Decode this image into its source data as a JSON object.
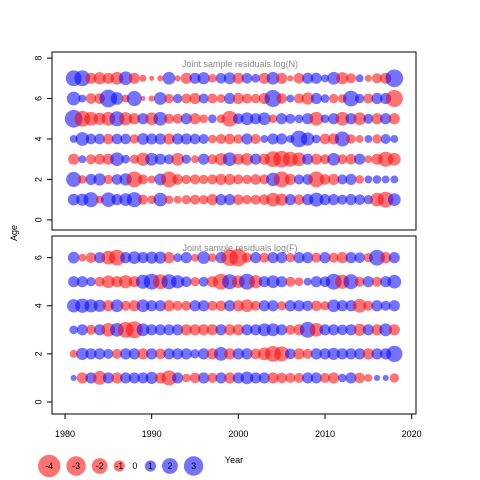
{
  "chart_data": [
    {
      "type": "scatter",
      "title": "Joint sample residuals log(N)",
      "xlabel": "",
      "ylabel": "Age",
      "xlim": [
        1978.5,
        2020.5
      ],
      "ylim": [
        -0.5,
        8.3
      ],
      "yticks": [
        0,
        2,
        4,
        6,
        8
      ],
      "ages": [
        1,
        2,
        3,
        4,
        5,
        6,
        7
      ],
      "years": [
        1981,
        2018
      ],
      "grid": false,
      "series": [
        {
          "age": 7,
          "residuals": [
            2.0,
            2.0,
            -1.0,
            -1.2,
            -1.0,
            -1.3,
            1.5,
            -1.0,
            -0.4,
            -0.2,
            -0.3,
            1.3,
            -0.3,
            -1.0,
            1.0,
            1.2,
            -0.6,
            0.9,
            1.1,
            -1.0,
            0.9,
            0.6,
            -1.0,
            1.3,
            -1.0,
            -0.3,
            -0.9,
            1.0,
            1.0,
            0.5,
            1.3,
            -1.2,
            -0.8,
            0.5,
            -0.4,
            -0.8,
            -1.0,
            2.5
          ]
        },
        {
          "age": 6,
          "residuals": [
            1.5,
            0.5,
            -0.9,
            -0.9,
            2.5,
            1.3,
            -0.5,
            1.8,
            -0.2,
            -0.3,
            1.3,
            -0.7,
            0.7,
            -0.8,
            -1.0,
            0.8,
            -0.8,
            -0.6,
            1.0,
            -1.0,
            -0.8,
            -0.7,
            -1.0,
            2.3,
            -0.9,
            0.5,
            -0.8,
            -1.2,
            1.0,
            0.6,
            -0.7,
            -0.6,
            2.0,
            0.7,
            -0.8,
            1.0,
            1.0,
            -2.3
          ]
        },
        {
          "age": 5,
          "residuals": [
            2.5,
            -2.0,
            -1.5,
            -1.2,
            -1.5,
            1.8,
            -1.4,
            -1.0,
            1.0,
            -1.3,
            1.5,
            -0.8,
            -0.8,
            1.0,
            -1.0,
            -0.6,
            0.6,
            -0.6,
            -2.0,
            0.9,
            1.3,
            1.0,
            1.3,
            -0.6,
            1.0,
            0.8,
            0.6,
            1.0,
            -1.5,
            0.6,
            1.0,
            -1.5,
            1.0,
            -1.3,
            0.8,
            -1.0,
            1.0,
            -1.0
          ]
        },
        {
          "age": 4,
          "residuals": [
            0.5,
            1.5,
            0.9,
            0.9,
            -0.9,
            0.9,
            0.9,
            -0.7,
            1.1,
            1.0,
            1.0,
            -1.0,
            1.0,
            1.0,
            0.9,
            0.8,
            -0.6,
            -0.8,
            -0.9,
            -0.7,
            1.0,
            -0.8,
            0.5,
            1.0,
            1.0,
            0.5,
            2.2,
            1.4,
            0.6,
            -0.9,
            -1.0,
            1.8,
            -0.7,
            -0.5,
            0.5,
            -0.7,
            0.8,
            0.5
          ]
        },
        {
          "age": 3,
          "residuals": [
            -1.0,
            0.5,
            -0.8,
            -0.9,
            -1.0,
            1.5,
            0.6,
            -0.7,
            -1.4,
            1.3,
            1.0,
            0.8,
            -1.3,
            0.7,
            -0.5,
            1.0,
            -0.8,
            -1.2,
            1.5,
            -1.0,
            -1.2,
            1.0,
            -1.0,
            -2.0,
            -2.2,
            -1.8,
            -1.5,
            1.0,
            -1.0,
            -0.8,
            1.3,
            -0.8,
            -0.9,
            1.0,
            -0.5,
            -1.0,
            -1.8,
            -1.3
          ]
        },
        {
          "age": 2,
          "residuals": [
            1.8,
            -0.6,
            1.0,
            1.2,
            -0.7,
            0.9,
            1.2,
            -2.0,
            -0.8,
            -0.5,
            1.1,
            -2.0,
            -0.9,
            -0.7,
            -0.8,
            -0.7,
            -0.8,
            -1.0,
            -1.0,
            -0.8,
            -0.7,
            -0.9,
            -0.8,
            1.5,
            -2.0,
            -1.0,
            0.8,
            0.9,
            -2.0,
            -0.9,
            -1.0,
            0.8,
            1.0,
            -0.6,
            0.5,
            0.6,
            0.5,
            0.5
          ]
        },
        {
          "age": 1,
          "residuals": [
            1.1,
            1.2,
            1.8,
            -0.5,
            1.7,
            1.0,
            1.3,
            1.8,
            -0.8,
            -0.6,
            1.5,
            -0.6,
            -0.5,
            -0.7,
            -0.8,
            -0.7,
            -1.0,
            1.0,
            1.0,
            -0.9,
            -0.7,
            -0.8,
            -0.9,
            -1.5,
            -1.2,
            1.0,
            -0.9,
            1.0,
            1.6,
            1.0,
            1.0,
            0.8,
            1.0,
            0.9,
            0.7,
            -1.5,
            -2.0,
            1.3
          ]
        }
      ]
    },
    {
      "type": "scatter",
      "title": "Joint sample residuals log(F)",
      "xlabel": "Year",
      "ylabel": "Age",
      "xlim": [
        1978.5,
        2020.5
      ],
      "ylim": [
        -0.5,
        6.9
      ],
      "xticks": [
        1980,
        1990,
        2000,
        2010,
        2020
      ],
      "yticks": [
        0,
        2,
        4,
        6
      ],
      "ages": [
        1,
        2,
        3,
        4,
        5,
        6
      ],
      "years": [
        1981,
        2018
      ],
      "grid": false,
      "series": [
        {
          "age": 6,
          "residuals": [
            1.1,
            -0.5,
            -0.9,
            1.0,
            -1.5,
            -2.0,
            1.0,
            1.3,
            1.0,
            1.2,
            1.2,
            -1.0,
            0.6,
            1.0,
            -0.5,
            1.3,
            -0.6,
            1.0,
            -2.2,
            -2.5,
            -0.8,
            1.0,
            -0.8,
            1.0,
            1.0,
            -0.7,
            1.0,
            1.0,
            -0.8,
            1.0,
            -0.8,
            -1.0,
            1.0,
            0.9,
            -0.7,
            2.0,
            -1.0,
            1.0
          ]
        },
        {
          "age": 5,
          "residuals": [
            1.0,
            1.0,
            0.7,
            -0.8,
            -1.3,
            -1.0,
            -1.4,
            -1.0,
            1.6,
            2.0,
            -1.8,
            1.8,
            1.4,
            0.9,
            -0.7,
            0.8,
            -1.0,
            -2.0,
            1.8,
            -1.3,
            2.0,
            -1.4,
            1.0,
            1.3,
            1.0,
            -0.8,
            -0.6,
            0.5,
            1.0,
            0.9,
            2.0,
            -1.6,
            1.8,
            -0.8,
            1.0,
            -0.8,
            1.0,
            1.5
          ]
        },
        {
          "age": 4,
          "residuals": [
            1.4,
            1.6,
            1.4,
            1.2,
            -1.0,
            1.3,
            -0.8,
            -1.0,
            1.3,
            1.0,
            1.0,
            -1.0,
            -0.8,
            -0.8,
            1.0,
            1.0,
            -0.8,
            -0.9,
            1.0,
            -1.0,
            -1.3,
            -0.8,
            1.0,
            1.0,
            -0.7,
            1.0,
            1.0,
            0.9,
            -0.9,
            -0.7,
            1.3,
            1.0,
            1.0,
            -1.5,
            -0.8,
            1.0,
            0.8,
            1.0
          ]
        },
        {
          "age": 3,
          "residuals": [
            0.6,
            1.0,
            -0.8,
            1.0,
            -1.5,
            1.5,
            -2.0,
            -2.3,
            1.3,
            1.0,
            1.0,
            1.0,
            1.0,
            -1.0,
            -1.0,
            -1.0,
            -1.0,
            1.0,
            -1.0,
            -1.0,
            1.0,
            1.0,
            1.3,
            1.3,
            1.0,
            -0.8,
            -1.0,
            2.0,
            -1.5,
            1.0,
            1.0,
            0.9,
            1.0,
            -1.2,
            1.0,
            -1.0,
            1.3,
            -1.0
          ]
        },
        {
          "age": 2,
          "residuals": [
            -0.5,
            1.2,
            1.0,
            1.0,
            0.8,
            -0.8,
            1.0,
            1.0,
            -1.0,
            1.0,
            -0.9,
            1.0,
            1.0,
            1.0,
            0.7,
            1.0,
            -1.0,
            1.5,
            -1.0,
            1.0,
            1.0,
            -0.9,
            -1.3,
            -2.0,
            -1.8,
            0.9,
            -1.0,
            -0.8,
            1.0,
            1.0,
            1.2,
            1.0,
            1.0,
            1.0,
            -1.0,
            1.0,
            1.0,
            2.1
          ]
        },
        {
          "age": 1,
          "residuals": [
            0.3,
            -1.0,
            1.0,
            -1.5,
            1.0,
            -1.0,
            1.0,
            1.0,
            1.0,
            1.2,
            -1.0,
            -1.8,
            1.0,
            -0.6,
            -0.9,
            1.0,
            -0.8,
            1.0,
            -1.0,
            1.0,
            1.3,
            1.0,
            1.0,
            -1.0,
            -0.9,
            -0.8,
            -0.8,
            1.0,
            1.0,
            -0.8,
            -1.0,
            0.6,
            1.0,
            -0.9,
            -0.5,
            0.3,
            0.3,
            -0.7
          ]
        }
      ]
    }
  ],
  "legend": {
    "values": [
      -4,
      -3,
      -2,
      -1,
      0,
      1,
      2,
      3
    ],
    "labels": [
      "-4",
      "-3",
      "-2",
      "-1",
      "0",
      "1",
      "2",
      "3"
    ],
    "position": "bottom-left"
  },
  "colors": {
    "negative": "#ff0000",
    "positive": "#0000ff",
    "opacity": 0.55
  }
}
